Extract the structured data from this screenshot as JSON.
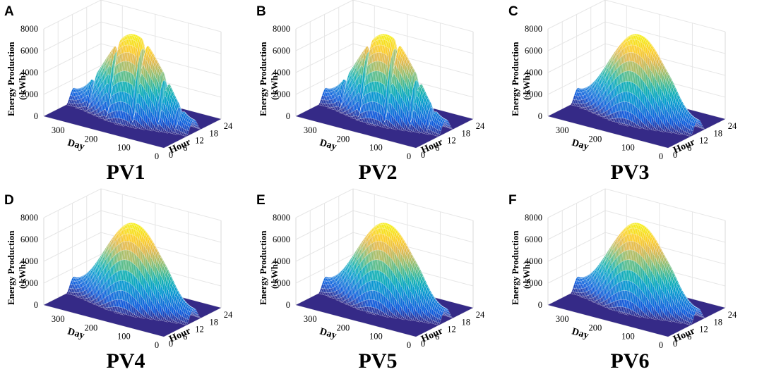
{
  "chart_data": [
    {
      "type": "surface3d",
      "panel": "A",
      "title": "PV1",
      "xlabel": "Hour",
      "ylabel": "Day",
      "zlabel": [
        "Energy Production",
        "( kWh)"
      ],
      "x_ticks": [
        "0",
        "6",
        "12",
        "18",
        "24"
      ],
      "y_ticks": [
        "0",
        "100",
        "200",
        "300"
      ],
      "z_ticks": [
        "0",
        "2000",
        "4000",
        "6000",
        "8000"
      ],
      "xlim": [
        0,
        24
      ],
      "ylim": [
        0,
        365
      ],
      "zlim": [
        0,
        8000
      ],
      "peak_kwh": 7600,
      "peak_day": 180,
      "peak_hour": 12.5,
      "has_dips": true
    },
    {
      "type": "surface3d",
      "panel": "B",
      "title": "PV2",
      "xlabel": "Hour",
      "ylabel": "Day",
      "zlabel": [
        "Energy Production",
        "( kWh)"
      ],
      "x_ticks": [
        "0",
        "6",
        "12",
        "18",
        "24"
      ],
      "y_ticks": [
        "0",
        "100",
        "200",
        "300"
      ],
      "z_ticks": [
        "0",
        "2000",
        "4000",
        "6000",
        "8000"
      ],
      "xlim": [
        0,
        24
      ],
      "ylim": [
        0,
        365
      ],
      "zlim": [
        0,
        8000
      ],
      "peak_kwh": 7600,
      "peak_day": 180,
      "peak_hour": 12.5,
      "has_dips": true
    },
    {
      "type": "surface3d",
      "panel": "C",
      "title": "PV3",
      "xlabel": "Hour",
      "ylabel": "Day",
      "zlabel": [
        "Energy Production",
        "( kWh)"
      ],
      "x_ticks": [
        "0",
        "6",
        "12",
        "18",
        "24"
      ],
      "y_ticks": [
        "0",
        "100",
        "200",
        "300"
      ],
      "z_ticks": [
        "0",
        "2000",
        "4000",
        "6000",
        "8000"
      ],
      "xlim": [
        0,
        24
      ],
      "ylim": [
        0,
        365
      ],
      "zlim": [
        0,
        8000
      ],
      "peak_kwh": 7600,
      "peak_day": 180,
      "peak_hour": 12.5,
      "has_dips": false
    },
    {
      "type": "surface3d",
      "panel": "D",
      "title": "PV4",
      "xlabel": "Hour",
      "ylabel": "Day",
      "zlabel": [
        "Energy Production",
        "( kWh)"
      ],
      "x_ticks": [
        "0",
        "6",
        "12",
        "18",
        "24"
      ],
      "y_ticks": [
        "0",
        "100",
        "200",
        "300"
      ],
      "z_ticks": [
        "0",
        "2000",
        "4000",
        "6000",
        "8000"
      ],
      "xlim": [
        0,
        24
      ],
      "ylim": [
        0,
        365
      ],
      "zlim": [
        0,
        8000
      ],
      "peak_kwh": 7600,
      "peak_day": 180,
      "peak_hour": 12.5,
      "has_dips": false
    },
    {
      "type": "surface3d",
      "panel": "E",
      "title": "PV5",
      "xlabel": "Hour",
      "ylabel": "Day",
      "zlabel": [
        "Energy Production",
        "( kWh)"
      ],
      "x_ticks": [
        "0",
        "6",
        "12",
        "18",
        "24"
      ],
      "y_ticks": [
        "0",
        "100",
        "200",
        "300"
      ],
      "z_ticks": [
        "0",
        "2000",
        "4000",
        "6000",
        "8000"
      ],
      "xlim": [
        0,
        24
      ],
      "ylim": [
        0,
        365
      ],
      "zlim": [
        0,
        8000
      ],
      "peak_kwh": 7600,
      "peak_day": 180,
      "peak_hour": 12.5,
      "has_dips": false
    },
    {
      "type": "surface3d",
      "panel": "F",
      "title": "PV6",
      "xlabel": "Hour",
      "ylabel": "Day",
      "zlabel": [
        "Energy Production",
        "( kWh)"
      ],
      "x_ticks": [
        "0",
        "6",
        "12",
        "18",
        "24"
      ],
      "y_ticks": [
        "0",
        "100",
        "200",
        "300"
      ],
      "z_ticks": [
        "0",
        "2000",
        "4000",
        "6000",
        "8000"
      ],
      "xlim": [
        0,
        24
      ],
      "ylim": [
        0,
        365
      ],
      "zlim": [
        0,
        8000
      ],
      "peak_kwh": 7600,
      "peak_day": 180,
      "peak_hour": 12.5,
      "has_dips": false
    }
  ]
}
